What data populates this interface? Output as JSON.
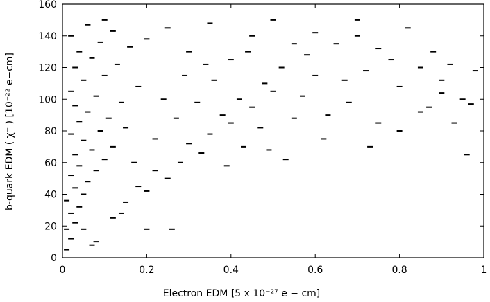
{
  "chart_data": {
    "type": "scatter",
    "xlabel": "Electron EDM [5 x 10⁻²⁷  e − cm]",
    "ylabel": "b-quark EDM ( χ⁺ ) [10⁻²² e−cm]",
    "color": "#000000",
    "xlim": [
      0,
      1
    ],
    "xticks": [
      0,
      0.2,
      0.4,
      0.6,
      0.8,
      1
    ],
    "ylim": [
      0,
      160
    ],
    "yticks": [
      0,
      20,
      40,
      60,
      80,
      100,
      120,
      140,
      160
    ],
    "x": [
      0.01,
      0.02,
      0.01,
      0.03,
      0.02,
      0.04,
      0.01,
      0.05,
      0.03,
      0.06,
      0.02,
      0.08,
      0.04,
      0.1,
      0.03,
      0.07,
      0.12,
      0.05,
      0.02,
      0.09,
      0.15,
      0.04,
      0.11,
      0.06,
      0.03,
      0.14,
      0.08,
      0.02,
      0.18,
      0.05,
      0.1,
      0.03,
      0.13,
      0.07,
      0.04,
      0.16,
      0.09,
      0.02,
      0.12,
      0.06,
      0.1,
      0.08,
      0.12,
      0.15,
      0.18,
      0.2,
      0.22,
      0.25,
      0.28,
      0.3,
      0.33,
      0.35,
      0.38,
      0.4,
      0.42,
      0.45,
      0.48,
      0.5,
      0.52,
      0.55,
      0.58,
      0.6,
      0.62,
      0.65,
      0.68,
      0.7,
      0.72,
      0.75,
      0.78,
      0.8,
      0.82,
      0.85,
      0.88,
      0.9,
      0.92,
      0.95,
      0.98,
      0.2,
      0.25,
      0.3,
      0.35,
      0.4,
      0.45,
      0.5,
      0.55,
      0.6,
      0.7,
      0.75,
      0.85,
      0.9,
      0.97,
      0.05,
      0.07,
      0.14,
      0.2,
      0.26,
      0.17,
      0.22,
      0.27,
      0.32,
      0.36,
      0.43,
      0.47,
      0.53,
      0.57,
      0.63,
      0.67,
      0.73,
      0.8,
      0.87,
      0.93,
      0.96,
      0.24,
      0.29,
      0.34,
      0.39,
      0.44,
      0.49
    ],
    "values": [
      5,
      12,
      18,
      22,
      28,
      32,
      36,
      40,
      44,
      48,
      52,
      55,
      58,
      62,
      65,
      68,
      70,
      74,
      78,
      80,
      82,
      86,
      88,
      92,
      96,
      98,
      102,
      105,
      108,
      112,
      115,
      120,
      122,
      126,
      130,
      133,
      136,
      140,
      143,
      147,
      150,
      10,
      25,
      35,
      45,
      42,
      55,
      50,
      60,
      72,
      66,
      78,
      90,
      85,
      100,
      95,
      110,
      105,
      120,
      88,
      128,
      115,
      75,
      135,
      98,
      140,
      118,
      85,
      125,
      108,
      145,
      92,
      130,
      112,
      122,
      100,
      118,
      138,
      145,
      130,
      148,
      125,
      140,
      150,
      135,
      142,
      150,
      132,
      120,
      104,
      97,
      18,
      8,
      28,
      18,
      18,
      60,
      75,
      88,
      98,
      112,
      70,
      82,
      62,
      102,
      90,
      112,
      70,
      80,
      95,
      85,
      65,
      100,
      115,
      122,
      58,
      130,
      68
    ]
  }
}
